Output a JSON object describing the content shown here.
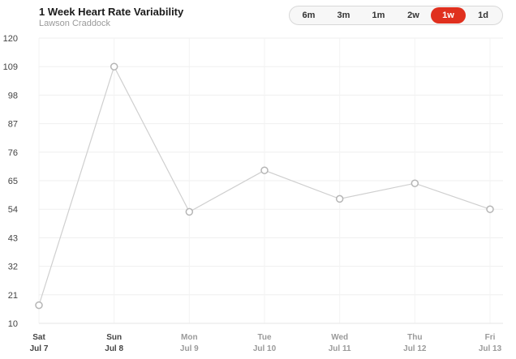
{
  "header": {
    "title": "1 Week Heart Rate Variability",
    "subtitle": "Lawson Craddock"
  },
  "range_selector": {
    "options": [
      "6m",
      "3m",
      "1m",
      "2w",
      "1w",
      "1d"
    ],
    "selected": "1w",
    "accent_color": "#e0301e"
  },
  "chart_data": {
    "type": "line",
    "categories": [
      {
        "day": "Sat",
        "date": "Jul 7"
      },
      {
        "day": "Sun",
        "date": "Jul 8"
      },
      {
        "day": "Mon",
        "date": "Jul 9"
      },
      {
        "day": "Tue",
        "date": "Jul 10"
      },
      {
        "day": "Wed",
        "date": "Jul 11"
      },
      {
        "day": "Thu",
        "date": "Jul 12"
      },
      {
        "day": "Fri",
        "date": "Jul 13"
      }
    ],
    "values": [
      17,
      109,
      53,
      69,
      58,
      64,
      54
    ],
    "y_ticks": [
      10,
      21,
      32,
      43,
      54,
      65,
      76,
      87,
      98,
      109,
      120
    ],
    "ylim": [
      10,
      120
    ],
    "grid": true,
    "line_color": "#cfcfcf",
    "marker_color": "#b5b5b5"
  }
}
